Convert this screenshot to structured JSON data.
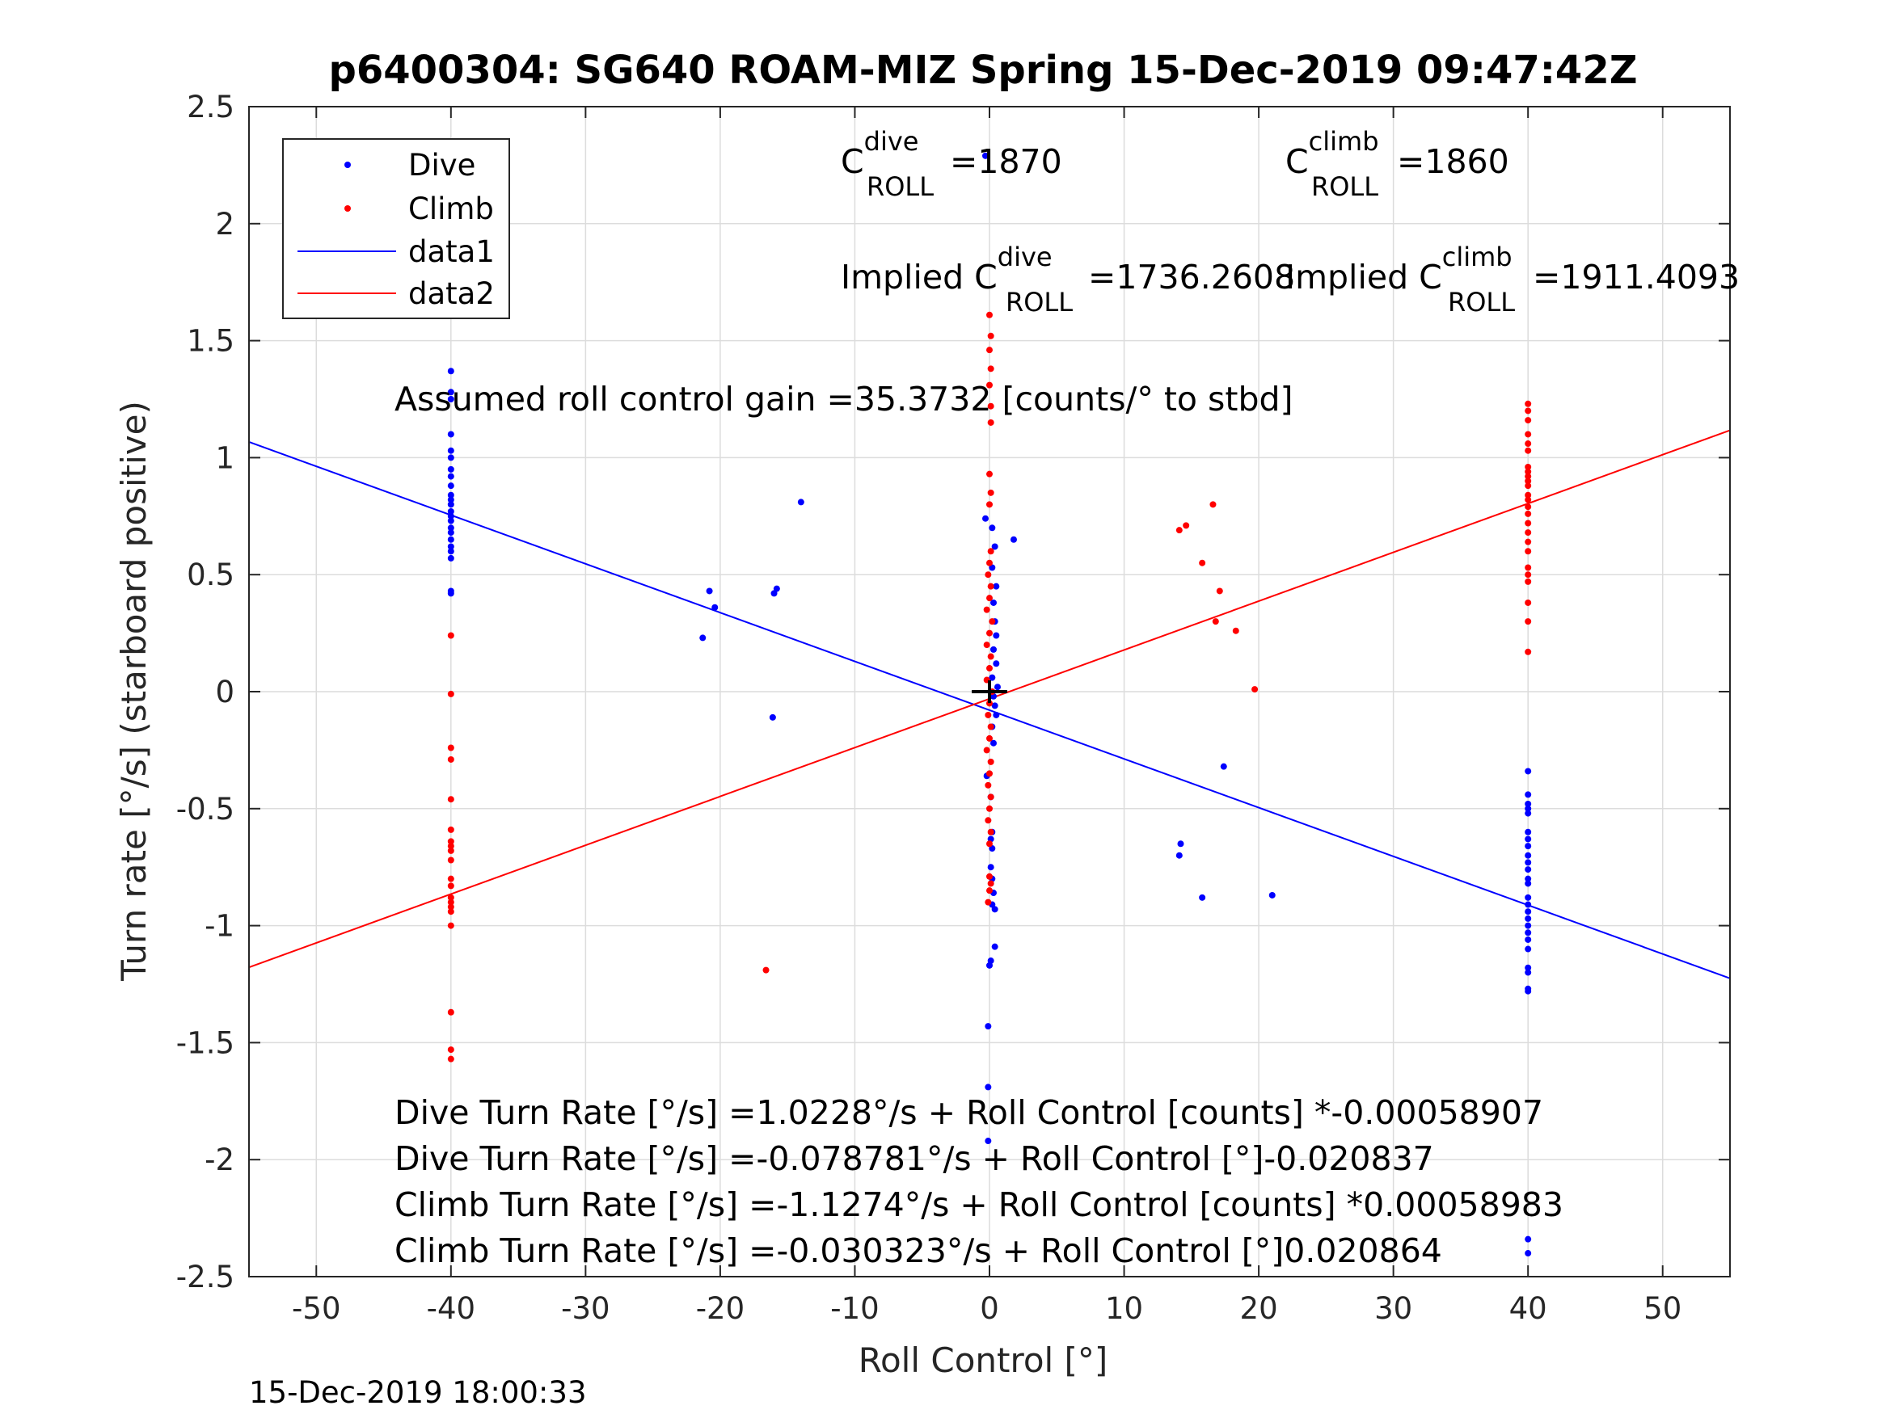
{
  "chart_data": {
    "type": "scatter",
    "title": "p6400304: SG640 ROAM-MIZ Spring 15-Dec-2019 09:47:42Z",
    "xlabel": "Roll Control [°]",
    "ylabel": "Turn rate [°/s] (starboard positive)",
    "xlim": [
      -55,
      55
    ],
    "ylim": [
      -2.5,
      2.5
    ],
    "xticks": [
      -50,
      -40,
      -30,
      -20,
      -10,
      0,
      10,
      20,
      30,
      40,
      50
    ],
    "xtick_labels": [
      "-50",
      "-40",
      "-30",
      "-20",
      "-10",
      "0",
      "10",
      "20",
      "30",
      "40",
      "50"
    ],
    "yticks": [
      2.5,
      2,
      1.5,
      1,
      0.5,
      0,
      -0.5,
      -1,
      -1.5,
      -2,
      -2.5
    ],
    "ytick_labels": [
      "2.5",
      "2",
      "1.5",
      "1",
      "0.5",
      "0",
      "-0.5",
      "-1",
      "-1.5",
      "-2",
      "-2.5"
    ],
    "grid": true,
    "legend": {
      "position": "top-left",
      "entries": [
        {
          "label": "Dive",
          "color": "#0000ff",
          "kind": "dot"
        },
        {
          "label": "Climb",
          "color": "#ff0000",
          "kind": "dot"
        },
        {
          "label": "data1",
          "color": "#0000ff",
          "kind": "line"
        },
        {
          "label": "data2",
          "color": "#ff0000",
          "kind": "line"
        }
      ]
    },
    "series": [
      {
        "name": "Dive",
        "color": "#0000ff",
        "points": [
          [
            -40,
            1.37
          ],
          [
            -40,
            1.28
          ],
          [
            -40,
            1.25
          ],
          [
            -40,
            1.1
          ],
          [
            -40,
            1.03
          ],
          [
            -40,
            1.0
          ],
          [
            -40,
            0.95
          ],
          [
            -40,
            0.92
          ],
          [
            -40,
            0.88
          ],
          [
            -40,
            0.84
          ],
          [
            -40,
            0.82
          ],
          [
            -40,
            0.8
          ],
          [
            -40,
            0.77
          ],
          [
            -40,
            0.75
          ],
          [
            -40,
            0.73
          ],
          [
            -40,
            0.7
          ],
          [
            -40,
            0.68
          ],
          [
            -40,
            0.65
          ],
          [
            -40,
            0.62
          ],
          [
            -40,
            0.6
          ],
          [
            -40,
            0.57
          ],
          [
            -40,
            0.43
          ],
          [
            -40,
            0.42
          ],
          [
            -21.3,
            0.23
          ],
          [
            -20.8,
            0.43
          ],
          [
            -20.4,
            0.36
          ],
          [
            -16.0,
            0.42
          ],
          [
            -15.8,
            0.44
          ],
          [
            -16.1,
            -0.11
          ],
          [
            -14.0,
            0.81
          ],
          [
            -0.3,
            2.29
          ],
          [
            -0.3,
            0.74
          ],
          [
            0.2,
            0.7
          ],
          [
            0.4,
            0.62
          ],
          [
            0.2,
            0.53
          ],
          [
            0.5,
            0.45
          ],
          [
            0.3,
            0.38
          ],
          [
            0.4,
            0.3
          ],
          [
            0.5,
            0.24
          ],
          [
            0.3,
            0.18
          ],
          [
            0.5,
            0.12
          ],
          [
            0.2,
            0.06
          ],
          [
            0.6,
            0.02
          ],
          [
            0.3,
            -0.02
          ],
          [
            0.4,
            -0.06
          ],
          [
            0.5,
            -0.1
          ],
          [
            0.2,
            -0.15
          ],
          [
            0.3,
            -0.22
          ],
          [
            -0.2,
            -0.36
          ],
          [
            0.1,
            -0.45
          ],
          [
            0.2,
            -0.6
          ],
          [
            0.1,
            -0.63
          ],
          [
            0.2,
            -0.67
          ],
          [
            0.1,
            -0.75
          ],
          [
            0.2,
            -0.8
          ],
          [
            0.3,
            -0.86
          ],
          [
            0.2,
            -0.91
          ],
          [
            0.4,
            -0.93
          ],
          [
            0.4,
            -1.09
          ],
          [
            0.1,
            -1.15
          ],
          [
            0.0,
            -1.17
          ],
          [
            -0.1,
            -1.43
          ],
          [
            -0.1,
            -1.69
          ],
          [
            -0.1,
            -1.92
          ],
          [
            1.8,
            0.65
          ],
          [
            14.2,
            -0.65
          ],
          [
            14.1,
            -0.7
          ],
          [
            15.8,
            -0.88
          ],
          [
            17.4,
            -0.32
          ],
          [
            21.0,
            -0.87
          ],
          [
            40,
            -0.34
          ],
          [
            40,
            -0.44
          ],
          [
            40,
            -0.48
          ],
          [
            40,
            -0.5
          ],
          [
            40,
            -0.52
          ],
          [
            40,
            -0.6
          ],
          [
            40,
            -0.63
          ],
          [
            40,
            -0.66
          ],
          [
            40,
            -0.7
          ],
          [
            40,
            -0.73
          ],
          [
            40,
            -0.76
          ],
          [
            40,
            -0.8
          ],
          [
            40,
            -0.82
          ],
          [
            40,
            -0.88
          ],
          [
            40,
            -0.91
          ],
          [
            40,
            -0.94
          ],
          [
            40,
            -0.97
          ],
          [
            40,
            -1.0
          ],
          [
            40,
            -1.03
          ],
          [
            40,
            -1.06
          ],
          [
            40,
            -1.1
          ],
          [
            40,
            -1.18
          ],
          [
            40,
            -1.2
          ],
          [
            40,
            -1.27
          ],
          [
            40,
            -1.28
          ],
          [
            40,
            -2.34
          ],
          [
            40,
            -2.4
          ]
        ]
      },
      {
        "name": "Climb",
        "color": "#ff0000",
        "points": [
          [
            -40,
            0.24
          ],
          [
            -40,
            -0.01
          ],
          [
            -40,
            -0.24
          ],
          [
            -40,
            -0.29
          ],
          [
            -40,
            -0.46
          ],
          [
            -40,
            -0.59
          ],
          [
            -40,
            -0.64
          ],
          [
            -40,
            -0.66
          ],
          [
            -40,
            -0.68
          ],
          [
            -40,
            -0.72
          ],
          [
            -40,
            -0.8
          ],
          [
            -40,
            -0.83
          ],
          [
            -40,
            -0.88
          ],
          [
            -40,
            -0.9
          ],
          [
            -40,
            -0.92
          ],
          [
            -40,
            -0.94
          ],
          [
            -40,
            -1.0
          ],
          [
            -40,
            -1.37
          ],
          [
            -40,
            -1.53
          ],
          [
            -40,
            -1.57
          ],
          [
            -16.6,
            -1.19
          ],
          [
            0.0,
            1.61
          ],
          [
            0.1,
            1.52
          ],
          [
            0.0,
            1.46
          ],
          [
            0.1,
            1.38
          ],
          [
            0.0,
            1.31
          ],
          [
            0.1,
            1.22
          ],
          [
            0.1,
            1.15
          ],
          [
            0.0,
            0.93
          ],
          [
            0.1,
            0.85
          ],
          [
            0.0,
            0.8
          ],
          [
            0.1,
            0.6
          ],
          [
            0.0,
            0.55
          ],
          [
            -0.1,
            0.5
          ],
          [
            0.1,
            0.45
          ],
          [
            0.0,
            0.4
          ],
          [
            -0.2,
            0.35
          ],
          [
            0.2,
            0.3
          ],
          [
            0.0,
            0.25
          ],
          [
            -0.2,
            0.2
          ],
          [
            0.1,
            0.15
          ],
          [
            0.0,
            0.1
          ],
          [
            -0.2,
            0.05
          ],
          [
            0.2,
            0.0
          ],
          [
            0.0,
            -0.05
          ],
          [
            -0.1,
            -0.1
          ],
          [
            0.1,
            -0.15
          ],
          [
            0.0,
            -0.2
          ],
          [
            -0.2,
            -0.25
          ],
          [
            0.1,
            -0.3
          ],
          [
            0.0,
            -0.35
          ],
          [
            -0.1,
            -0.4
          ],
          [
            0.1,
            -0.45
          ],
          [
            0.0,
            -0.5
          ],
          [
            -0.1,
            -0.55
          ],
          [
            0.1,
            -0.6
          ],
          [
            0.0,
            -0.65
          ],
          [
            0.0,
            -0.79
          ],
          [
            0.1,
            -0.82
          ],
          [
            0.0,
            -0.85
          ],
          [
            -0.1,
            -0.9
          ],
          [
            14.1,
            0.69
          ],
          [
            14.6,
            0.71
          ],
          [
            15.8,
            0.55
          ],
          [
            16.6,
            0.8
          ],
          [
            16.8,
            0.3
          ],
          [
            17.1,
            0.43
          ],
          [
            18.3,
            0.26
          ],
          [
            19.7,
            0.01
          ],
          [
            40,
            1.23
          ],
          [
            40,
            1.2
          ],
          [
            40,
            1.16
          ],
          [
            40,
            1.1
          ],
          [
            40,
            1.06
          ],
          [
            40,
            1.03
          ],
          [
            40,
            0.96
          ],
          [
            40,
            0.94
          ],
          [
            40,
            0.92
          ],
          [
            40,
            0.9
          ],
          [
            40,
            0.88
          ],
          [
            40,
            0.84
          ],
          [
            40,
            0.82
          ],
          [
            40,
            0.79
          ],
          [
            40,
            0.76
          ],
          [
            40,
            0.72
          ],
          [
            40,
            0.68
          ],
          [
            40,
            0.64
          ],
          [
            40,
            0.6
          ],
          [
            40,
            0.53
          ],
          [
            40,
            0.5
          ],
          [
            40,
            0.47
          ],
          [
            40,
            0.38
          ],
          [
            40,
            0.3
          ],
          [
            40,
            0.17
          ]
        ]
      }
    ],
    "lines": [
      {
        "name": "data1",
        "color": "#0000ff",
        "x": [
          -55,
          55
        ],
        "y": [
          1.067,
          -1.225
        ]
      },
      {
        "name": "data2",
        "color": "#ff0000",
        "x": [
          -55,
          55
        ],
        "y": [
          -1.178,
          1.117
        ]
      }
    ],
    "marker": {
      "x": 0,
      "y": 0,
      "color": "#000000"
    },
    "annotations": {
      "c_roll_dive": {
        "base": "C",
        "sup": "dive",
        "sub": "ROLL",
        "value": "=1870"
      },
      "c_roll_climb": {
        "base": "C",
        "sup": "climb",
        "sub": "ROLL",
        "value": "=1860"
      },
      "implied_dive": {
        "base": "Implied C",
        "sup": "dive",
        "sub": "ROLL",
        "value": "=1736.2608"
      },
      "implied_climb": {
        "base": "Implied C",
        "sup": "climb",
        "sub": "ROLL",
        "value": "=1911.4093"
      },
      "gain": "Assumed roll control gain =35.3732 [counts/° to stbd]",
      "fit_lines": [
        "Dive Turn Rate [°/s] =1.0228°/s + Roll Control [counts] *-0.00058907",
        "Dive Turn Rate [°/s] =-0.078781°/s + Roll Control [°]-0.020837",
        "Climb Turn Rate [°/s] =-1.1274°/s + Roll Control [counts] *0.00058983",
        "Climb Turn Rate [°/s] =-0.030323°/s + Roll Control [°]0.020864"
      ]
    },
    "footer": "15-Dec-2019 18:00:33"
  }
}
